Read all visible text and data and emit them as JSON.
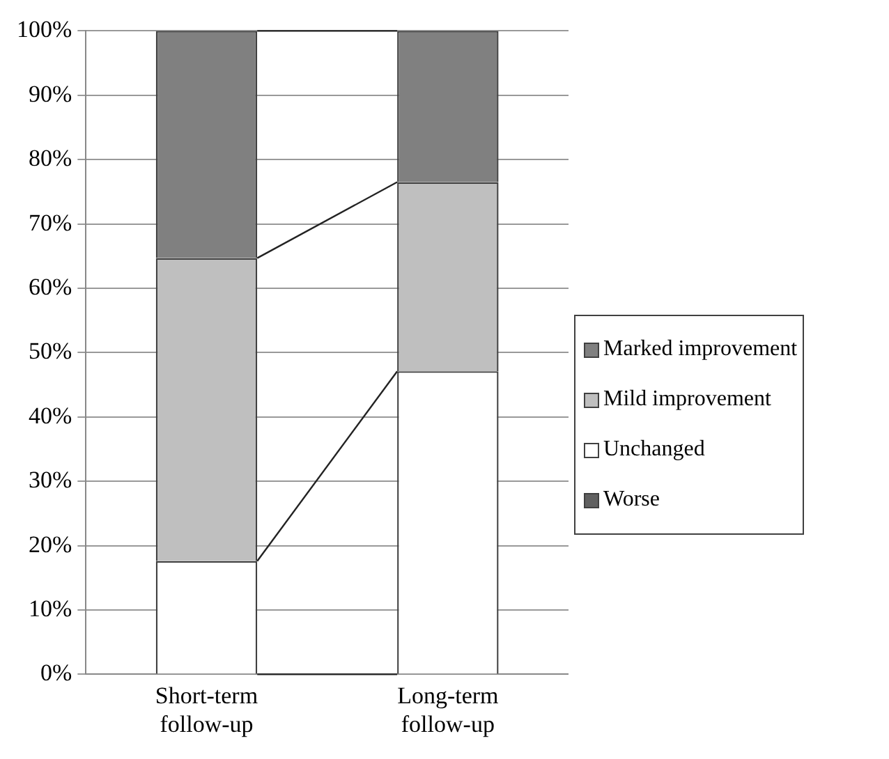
{
  "chart_data": {
    "type": "bar",
    "stacked": true,
    "categories": [
      "Short-term follow-up",
      "Long-term follow-up"
    ],
    "series": [
      {
        "name": "Worse",
        "color": "#606060",
        "values": [
          0,
          0
        ]
      },
      {
        "name": "Unchanged",
        "color": "#ffffff",
        "values": [
          17.6,
          47.1
        ]
      },
      {
        "name": "Mild improvement",
        "color": "#bfbfbf",
        "values": [
          47.1,
          29.4
        ]
      },
      {
        "name": "Marked improvement",
        "color": "#808080",
        "values": [
          35.3,
          23.5
        ]
      }
    ],
    "ylim": [
      0,
      100
    ],
    "yticks": [
      {
        "value": 0,
        "label": "0%"
      },
      {
        "value": 10,
        "label": "10%"
      },
      {
        "value": 20,
        "label": "20%"
      },
      {
        "value": 30,
        "label": "30%"
      },
      {
        "value": 40,
        "label": "40%"
      },
      {
        "value": 50,
        "label": "50%"
      },
      {
        "value": 60,
        "label": "60%"
      },
      {
        "value": 70,
        "label": "70%"
      },
      {
        "value": 80,
        "label": "80%"
      },
      {
        "value": 90,
        "label": "90%"
      },
      {
        "value": 100,
        "label": "100%"
      }
    ],
    "grid": "y",
    "legend": "right"
  }
}
